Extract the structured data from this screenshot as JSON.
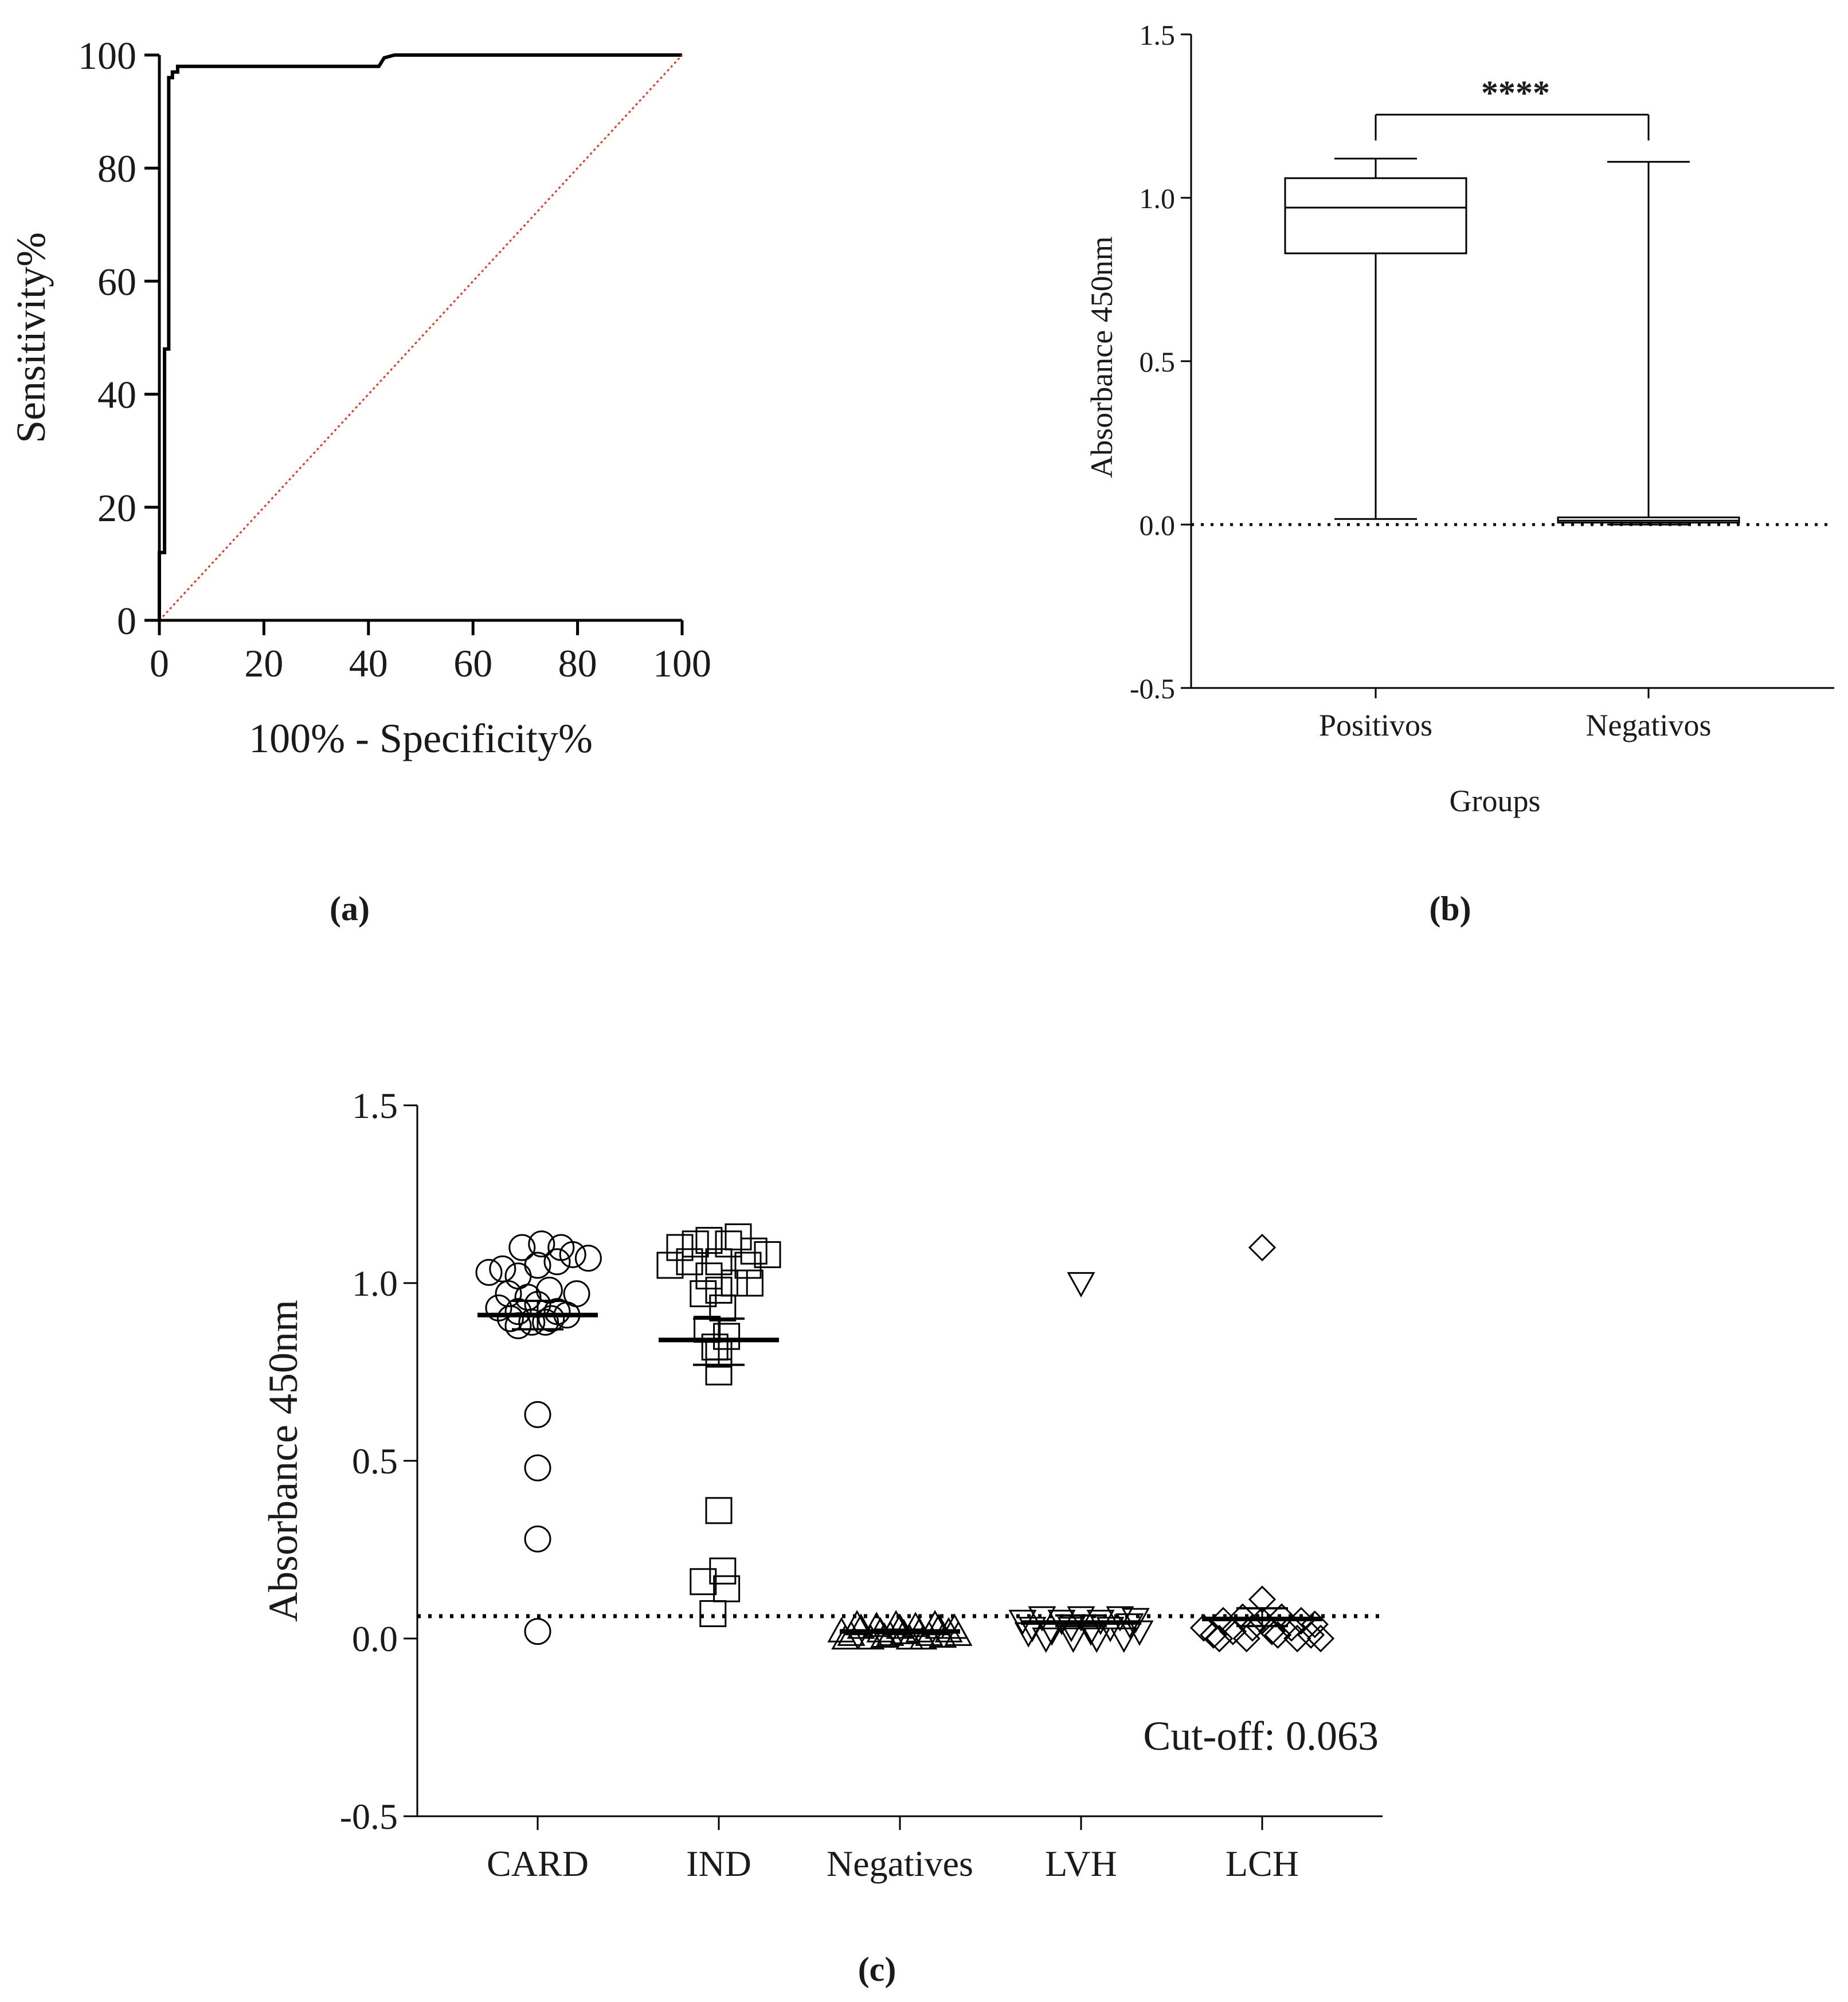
{
  "chart_data": [
    {
      "id": "a",
      "type": "line",
      "panel_label": "(a)",
      "title": "",
      "xlabel": "100% - Specificity%",
      "ylabel": "Sensitivity%",
      "xlim": [
        0,
        100
      ],
      "ylim": [
        0,
        100
      ],
      "xticks": [
        "0",
        "20",
        "40",
        "60",
        "80",
        "100"
      ],
      "yticks": [
        "0",
        "20",
        "40",
        "60",
        "80",
        "100"
      ],
      "grid": false,
      "series": [
        {
          "name": "ROC curve",
          "color": "#000000",
          "x": [
            0,
            0,
            1,
            1,
            1.8,
            1.8,
            2.5,
            2.5,
            3.5,
            3.5,
            42,
            43,
            45,
            100
          ],
          "y": [
            0,
            12,
            12,
            48,
            48,
            96,
            96,
            97,
            97,
            98,
            98,
            99.5,
            100,
            100
          ]
        },
        {
          "name": "Reference line",
          "color": "#e8321e",
          "style": "dotted",
          "x": [
            0,
            100
          ],
          "y": [
            0,
            100
          ]
        }
      ]
    },
    {
      "id": "b",
      "type": "box",
      "panel_label": "(b)",
      "title": "",
      "xlabel": "Groups",
      "ylabel": "Absorbance 450nm",
      "ylim": [
        -0.5,
        1.5
      ],
      "yticks": [
        "-0.5",
        "0.0",
        "0.5",
        "1.0",
        "1.5"
      ],
      "categories": [
        "Positivos",
        "Negativos"
      ],
      "boxes": [
        {
          "name": "Positivos",
          "min": 0.017,
          "q1": 0.83,
          "median": 0.97,
          "q3": 1.06,
          "max": 1.12
        },
        {
          "name": "Negativos",
          "min": 0.0,
          "q1": 0.006,
          "median": 0.012,
          "q3": 0.022,
          "max": 1.11
        }
      ],
      "significance": "****",
      "reference_line": 0.0
    },
    {
      "id": "c",
      "type": "scatter",
      "panel_label": "(c)",
      "title": "",
      "xlabel": "",
      "ylabel": "Absorbance 450nm",
      "ylim": [
        -0.5,
        1.5
      ],
      "yticks": [
        "-0.5",
        "0.0",
        "0.5",
        "1.0",
        "1.5"
      ],
      "categories": [
        "CARD",
        "IND",
        "Negatives",
        "LVH",
        "LCH"
      ],
      "cutoff": 0.063,
      "annotation": "Cut-off: 0.063",
      "groups": [
        {
          "name": "CARD",
          "marker": "circle",
          "mean": 0.91,
          "sem_low": 0.87,
          "sem_high": 0.95,
          "points": [
            {
              "dx": -0.25,
              "y": 1.03
            },
            {
              "dx": -0.18,
              "y": 1.04
            },
            {
              "dx": -0.1,
              "y": 1.02
            },
            {
              "dx": 0.0,
              "y": 1.05
            },
            {
              "dx": 0.1,
              "y": 1.06
            },
            {
              "dx": 0.18,
              "y": 1.08
            },
            {
              "dx": 0.26,
              "y": 1.07
            },
            {
              "dx": -0.08,
              "y": 1.1
            },
            {
              "dx": 0.02,
              "y": 1.11
            },
            {
              "dx": 0.12,
              "y": 1.1
            },
            {
              "dx": -0.15,
              "y": 0.97
            },
            {
              "dx": -0.05,
              "y": 0.96
            },
            {
              "dx": 0.06,
              "y": 0.98
            },
            {
              "dx": 0.2,
              "y": 0.97
            },
            {
              "dx": -0.2,
              "y": 0.93
            },
            {
              "dx": -0.1,
              "y": 0.92
            },
            {
              "dx": 0.0,
              "y": 0.94
            },
            {
              "dx": 0.1,
              "y": 0.92
            },
            {
              "dx": -0.14,
              "y": 0.9
            },
            {
              "dx": -0.03,
              "y": 0.89
            },
            {
              "dx": 0.07,
              "y": 0.9
            },
            {
              "dx": 0.15,
              "y": 0.91
            },
            {
              "dx": -0.1,
              "y": 0.88
            },
            {
              "dx": 0.04,
              "y": 0.89
            },
            {
              "dx": 0.0,
              "y": 0.63
            },
            {
              "dx": 0.0,
              "y": 0.48
            },
            {
              "dx": 0.0,
              "y": 0.28
            },
            {
              "dx": 0.0,
              "y": 0.02
            }
          ]
        },
        {
          "name": "IND",
          "marker": "square",
          "mean": 0.84,
          "sem_low": 0.77,
          "sem_high": 0.9,
          "points": [
            {
              "dx": -0.25,
              "y": 1.05
            },
            {
              "dx": -0.2,
              "y": 1.1
            },
            {
              "dx": -0.12,
              "y": 1.11
            },
            {
              "dx": -0.05,
              "y": 1.12
            },
            {
              "dx": 0.05,
              "y": 1.11
            },
            {
              "dx": 0.1,
              "y": 1.13
            },
            {
              "dx": 0.18,
              "y": 1.09
            },
            {
              "dx": 0.25,
              "y": 1.08
            },
            {
              "dx": -0.15,
              "y": 1.06
            },
            {
              "dx": 0.0,
              "y": 1.06
            },
            {
              "dx": 0.15,
              "y": 1.05
            },
            {
              "dx": -0.05,
              "y": 1.02
            },
            {
              "dx": 0.0,
              "y": 0.98
            },
            {
              "dx": 0.08,
              "y": 1.0
            },
            {
              "dx": 0.16,
              "y": 1.0
            },
            {
              "dx": -0.08,
              "y": 0.97
            },
            {
              "dx": 0.02,
              "y": 0.93
            },
            {
              "dx": -0.06,
              "y": 0.87
            },
            {
              "dx": 0.04,
              "y": 0.85
            },
            {
              "dx": -0.02,
              "y": 0.82
            },
            {
              "dx": 0.0,
              "y": 0.8
            },
            {
              "dx": 0.0,
              "y": 0.75
            },
            {
              "dx": 0.0,
              "y": 0.36
            },
            {
              "dx": 0.02,
              "y": 0.19
            },
            {
              "dx": -0.08,
              "y": 0.16
            },
            {
              "dx": 0.04,
              "y": 0.14
            },
            {
              "dx": -0.03,
              "y": 0.07
            }
          ]
        },
        {
          "name": "Negatives",
          "marker": "triangle-up",
          "mean": 0.02,
          "sem_low": 0.015,
          "sem_high": 0.025,
          "points": [
            {
              "dx": -0.3,
              "y": 0.02
            },
            {
              "dx": -0.25,
              "y": 0.01
            },
            {
              "dx": -0.2,
              "y": 0.03
            },
            {
              "dx": -0.15,
              "y": 0.0
            },
            {
              "dx": -0.1,
              "y": 0.02
            },
            {
              "dx": -0.05,
              "y": 0.01
            },
            {
              "dx": 0.0,
              "y": 0.03
            },
            {
              "dx": 0.05,
              "y": 0.0
            },
            {
              "dx": 0.1,
              "y": 0.02
            },
            {
              "dx": 0.15,
              "y": 0.01
            },
            {
              "dx": 0.2,
              "y": 0.03
            },
            {
              "dx": 0.25,
              "y": 0.02
            },
            {
              "dx": 0.3,
              "y": 0.01
            },
            {
              "dx": -0.22,
              "y": 0.04
            },
            {
              "dx": -0.12,
              "y": 0.035
            },
            {
              "dx": -0.02,
              "y": 0.04
            },
            {
              "dx": 0.08,
              "y": 0.035
            },
            {
              "dx": 0.18,
              "y": 0.04
            },
            {
              "dx": 0.28,
              "y": 0.03
            },
            {
              "dx": -0.28,
              "y": 0.0
            },
            {
              "dx": 0.12,
              "y": 0.0
            },
            {
              "dx": -0.08,
              "y": 0.005
            },
            {
              "dx": 0.22,
              "y": 0.005
            },
            {
              "dx": 0.02,
              "y": 0.015
            }
          ]
        },
        {
          "name": "LVH",
          "marker": "triangle-down",
          "mean": 0.045,
          "sem_low": 0.035,
          "sem_high": 0.065,
          "points": [
            {
              "dx": 0.0,
              "y": 1.0
            },
            {
              "dx": -0.3,
              "y": 0.05
            },
            {
              "dx": -0.25,
              "y": 0.03
            },
            {
              "dx": -0.2,
              "y": 0.06
            },
            {
              "dx": -0.15,
              "y": 0.02
            },
            {
              "dx": -0.1,
              "y": 0.05
            },
            {
              "dx": -0.05,
              "y": 0.03
            },
            {
              "dx": 0.0,
              "y": 0.06
            },
            {
              "dx": 0.05,
              "y": 0.02
            },
            {
              "dx": 0.1,
              "y": 0.05
            },
            {
              "dx": 0.15,
              "y": 0.03
            },
            {
              "dx": 0.2,
              "y": 0.06
            },
            {
              "dx": 0.25,
              "y": 0.04
            },
            {
              "dx": 0.3,
              "y": 0.02
            },
            {
              "dx": -0.18,
              "y": 0.0
            },
            {
              "dx": -0.04,
              "y": 0.0
            },
            {
              "dx": 0.08,
              "y": 0.0
            },
            {
              "dx": 0.22,
              "y": 0.0
            },
            {
              "dx": -0.27,
              "y": 0.015
            },
            {
              "dx": 0.28,
              "y": 0.055
            }
          ]
        },
        {
          "name": "LCH",
          "marker": "diamond",
          "mean": 0.055,
          "sem_low": 0.035,
          "sem_high": 0.085,
          "points": [
            {
              "dx": 0.0,
              "y": 1.1
            },
            {
              "dx": 0.0,
              "y": 0.11
            },
            {
              "dx": -0.3,
              "y": 0.03
            },
            {
              "dx": -0.25,
              "y": 0.01
            },
            {
              "dx": -0.2,
              "y": 0.05
            },
            {
              "dx": -0.15,
              "y": 0.02
            },
            {
              "dx": -0.1,
              "y": 0.06
            },
            {
              "dx": -0.05,
              "y": 0.03
            },
            {
              "dx": 0.0,
              "y": 0.05
            },
            {
              "dx": 0.05,
              "y": 0.02
            },
            {
              "dx": 0.1,
              "y": 0.06
            },
            {
              "dx": 0.15,
              "y": 0.03
            },
            {
              "dx": 0.2,
              "y": 0.05
            },
            {
              "dx": 0.25,
              "y": 0.01
            },
            {
              "dx": 0.3,
              "y": 0.0
            },
            {
              "dx": -0.22,
              "y": 0.0
            },
            {
              "dx": 0.18,
              "y": 0.0
            },
            {
              "dx": -0.08,
              "y": 0.0
            },
            {
              "dx": 0.08,
              "y": 0.01
            },
            {
              "dx": 0.27,
              "y": 0.04
            }
          ]
        }
      ]
    }
  ]
}
